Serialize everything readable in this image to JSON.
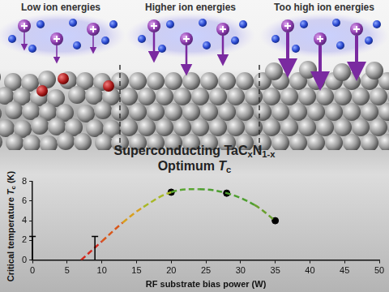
{
  "illustration": {
    "panels": [
      "Low ion energies",
      "Higher ion energies",
      "Too high ion energies"
    ]
  },
  "headline": [
    [
      {
        "text": "Superconducting TaC"
      },
      {
        "text": "x",
        "sub": true
      },
      {
        "text": "N"
      },
      {
        "text": "1-x",
        "sub": true
      }
    ],
    [
      {
        "text": "Optimum "
      },
      {
        "text": "T",
        "italic": true
      },
      {
        "text": "c",
        "sub": true
      }
    ]
  ],
  "chart_data": {
    "type": "scatter",
    "x_label": "RF substrate bias power (W)",
    "y_label": [
      {
        "text": "Critical temperature "
      },
      {
        "text": "T",
        "italic": true
      },
      {
        "text": "c",
        "sub": true
      },
      {
        "text": " (K)"
      }
    ],
    "xlim": [
      0,
      50
    ],
    "xticks": [
      0,
      5,
      10,
      15,
      20,
      25,
      30,
      35,
      40,
      45,
      50
    ],
    "ylim": [
      0,
      8
    ],
    "yticks": [
      0,
      2,
      4,
      6,
      8
    ],
    "grid": false,
    "series": [
      {
        "type": "line",
        "line_style": "dashed",
        "x": [
          7,
          10,
          13,
          16,
          20,
          24,
          28,
          32,
          35
        ],
        "values": [
          0,
          1.9,
          3.8,
          5.4,
          6.9,
          7.2,
          6.8,
          5.6,
          4.0
        ],
        "colors": [
          "#d42a1e",
          "#d8581c",
          "#d8a020",
          "#a8b828",
          "#5aa532",
          "#4e9e30",
          "#4e9e30",
          "#6aa030",
          "#6aa030"
        ]
      },
      {
        "type": "scatter",
        "marker": "circle",
        "color": "#000000",
        "x": [
          20,
          28,
          35
        ],
        "values": [
          6.9,
          6.8,
          4.0
        ]
      },
      {
        "type": "upper_limit",
        "color": "#000000",
        "x": [
          0,
          9
        ],
        "values": [
          2.4,
          2.4
        ]
      }
    ]
  }
}
